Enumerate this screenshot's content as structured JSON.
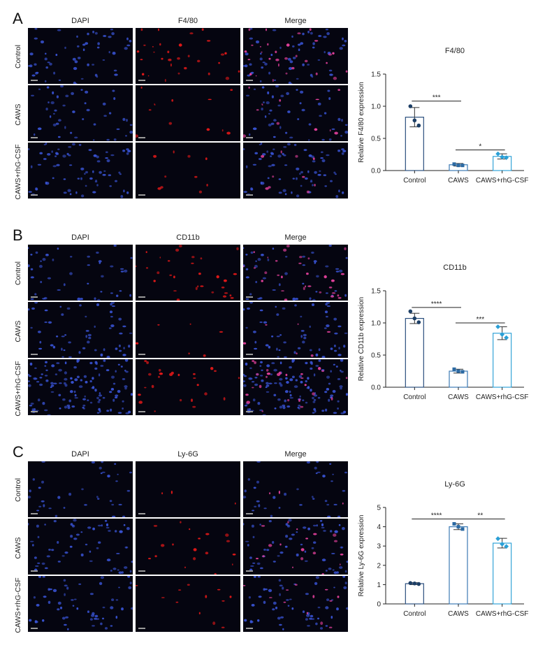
{
  "columns": [
    "DAPI",
    null,
    "Merge"
  ],
  "rows": [
    "Control",
    "CAWS",
    "CAWS+rhG-CSF"
  ],
  "colors": {
    "dapi": "#3a55d8",
    "marker": "#e01818",
    "control_bar": "#2b4f7e",
    "caws_bar": "#3c7ab5",
    "rhg_bar": "#33a4d8",
    "control_point": "#1d3f66",
    "caws_point": "#2c6aa3",
    "rhg_point": "#2a9fd6"
  },
  "panels": [
    {
      "letter": "A",
      "marker": "F4/80",
      "chart_data": {
        "type": "bar",
        "title": "F4/80",
        "ylabel": "Relative F4/80 expression",
        "categories": [
          "Control",
          "CAWS",
          "CAWS+rhG-CSF"
        ],
        "values": [
          0.83,
          0.09,
          0.22
        ],
        "errors": [
          0.15,
          0.02,
          0.04
        ],
        "points": [
          [
            1.0,
            0.78,
            0.7
          ],
          [
            0.1,
            0.08,
            0.08
          ],
          [
            0.26,
            0.21,
            0.2
          ]
        ],
        "ylim": [
          0,
          1.5
        ],
        "yticks": [
          "0.0",
          "0.5",
          "1.0",
          "1.5"
        ],
        "ytick_values": [
          0,
          0.5,
          1.0,
          1.5
        ],
        "significance": [
          {
            "from": 0,
            "to": 1,
            "label": "***",
            "y": 1.08
          },
          {
            "from": 1,
            "to": 2,
            "label": "*",
            "y": 0.32
          }
        ]
      }
    },
    {
      "letter": "B",
      "marker": "CD11b",
      "chart_data": {
        "type": "bar",
        "title": "CD11b",
        "ylabel": "Relative CD11b expression",
        "categories": [
          "Control",
          "CAWS",
          "CAWS+rhG-CSF"
        ],
        "values": [
          1.07,
          0.25,
          0.84
        ],
        "errors": [
          0.08,
          0.03,
          0.1
        ],
        "points": [
          [
            1.18,
            1.07,
            1.01
          ],
          [
            0.28,
            0.25,
            0.24
          ],
          [
            0.94,
            0.82,
            0.77
          ]
        ],
        "ylim": [
          0,
          1.5
        ],
        "yticks": [
          "0.0",
          "0.5",
          "1.0",
          "1.5"
        ],
        "ytick_values": [
          0,
          0.5,
          1.0,
          1.5
        ],
        "significance": [
          {
            "from": 0,
            "to": 1,
            "label": "****",
            "y": 1.24
          },
          {
            "from": 1,
            "to": 2,
            "label": "***",
            "y": 1.0
          }
        ]
      }
    },
    {
      "letter": "C",
      "marker": "Ly-6G",
      "chart_data": {
        "type": "bar",
        "title": "Ly-6G",
        "ylabel": "Relative Ly-6G expression",
        "categories": [
          "Control",
          "CAWS",
          "CAWS+rhG-CSF"
        ],
        "values": [
          1.05,
          4.0,
          3.15
        ],
        "errors": [
          0.05,
          0.15,
          0.25
        ],
        "points": [
          [
            1.08,
            1.06,
            1.03
          ],
          [
            4.15,
            4.0,
            3.88
          ],
          [
            3.38,
            3.1,
            2.98
          ]
        ],
        "ylim": [
          0,
          5
        ],
        "yticks": [
          "0",
          "1",
          "2",
          "3",
          "4",
          "5"
        ],
        "ytick_values": [
          0,
          1,
          2,
          3,
          4,
          5
        ],
        "significance": [
          {
            "from": 0,
            "to": 1,
            "label": "****",
            "y": 4.4
          },
          {
            "from": 1,
            "to": 2,
            "label": "**",
            "y": 4.4
          }
        ]
      }
    }
  ]
}
